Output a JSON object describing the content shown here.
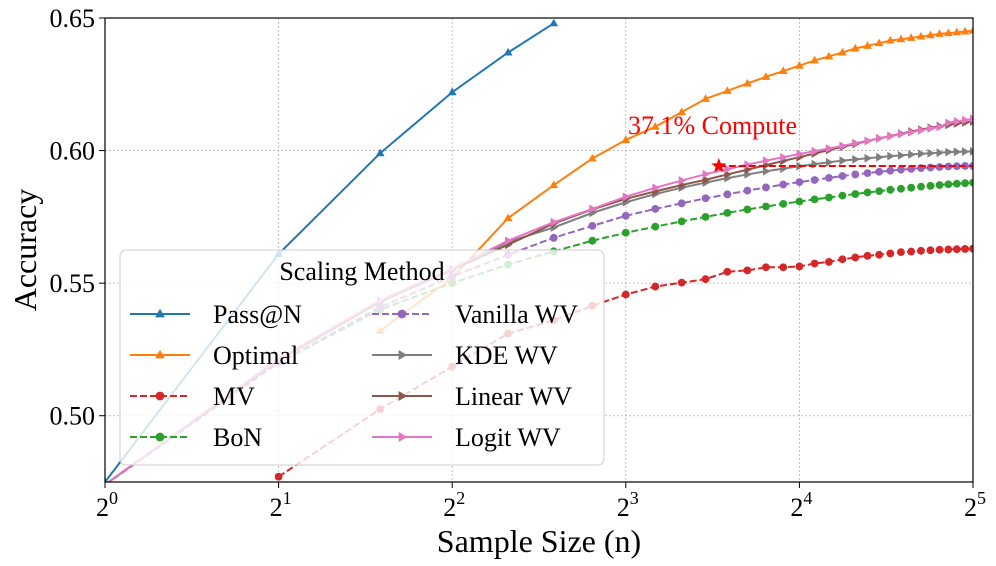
{
  "chart_data": {
    "type": "line",
    "xlabel": "Sample Size (n)",
    "ylabel": "Accuracy",
    "x_scale": "log2",
    "xlim": [
      1,
      32
    ],
    "ylim": [
      0.475,
      0.65
    ],
    "x_ticks": [
      {
        "value": 1,
        "base": "2",
        "exp": "0"
      },
      {
        "value": 2,
        "base": "2",
        "exp": "1"
      },
      {
        "value": 4,
        "base": "2",
        "exp": "2"
      },
      {
        "value": 8,
        "base": "2",
        "exp": "3"
      },
      {
        "value": 16,
        "base": "2",
        "exp": "4"
      },
      {
        "value": 32,
        "base": "2",
        "exp": "5"
      }
    ],
    "y_ticks": [
      {
        "value": 0.5,
        "label": "0.50"
      },
      {
        "value": 0.55,
        "label": "0.55"
      },
      {
        "value": 0.6,
        "label": "0.60"
      },
      {
        "value": 0.65,
        "label": "0.65"
      }
    ],
    "grid": true,
    "legend": {
      "title": "Scaling Method",
      "placement": "lower-left",
      "columns": 2
    },
    "series": [
      {
        "name": "Pass@N",
        "color": "#1f77b4",
        "marker": "triangle-up",
        "dash": "solid",
        "x": [
          1,
          2,
          3,
          4,
          5,
          6
        ],
        "y": [
          0.475,
          0.561,
          0.599,
          0.622,
          0.637,
          0.648
        ]
      },
      {
        "name": "Optimal",
        "color": "#ff7f0e",
        "marker": "triangle-up",
        "dash": "solid",
        "x": [
          3,
          4,
          5,
          6,
          7,
          8,
          9,
          10,
          11,
          12,
          13,
          14,
          15,
          16,
          17,
          18,
          19,
          20,
          21,
          22,
          23,
          24,
          25,
          26,
          27,
          28,
          29,
          30,
          31,
          32
        ],
        "y": [
          0.532,
          0.552,
          0.5745,
          0.587,
          0.597,
          0.604,
          0.609,
          0.6145,
          0.6195,
          0.6225,
          0.6253,
          0.6278,
          0.63,
          0.632,
          0.634,
          0.6355,
          0.637,
          0.6385,
          0.6395,
          0.6405,
          0.6415,
          0.642,
          0.6425,
          0.643,
          0.6435,
          0.644,
          0.6443,
          0.6446,
          0.6449,
          0.6452
        ]
      },
      {
        "name": "MV",
        "color": "#d62728",
        "marker": "circle",
        "dash": "dashed",
        "x": [
          2,
          3,
          4,
          5,
          6,
          7,
          8,
          9,
          10,
          11,
          12,
          13,
          14,
          15,
          16,
          17,
          18,
          19,
          20,
          21,
          22,
          23,
          24,
          25,
          26,
          27,
          28,
          29,
          30,
          31,
          32
        ],
        "y": [
          0.477,
          0.5025,
          0.5185,
          0.531,
          0.536,
          0.5415,
          0.5457,
          0.5487,
          0.5502,
          0.5515,
          0.5543,
          0.5548,
          0.556,
          0.556,
          0.5563,
          0.5574,
          0.558,
          0.559,
          0.5597,
          0.5603,
          0.5607,
          0.5612,
          0.5617,
          0.5619,
          0.5622,
          0.5624,
          0.5626,
          0.5627,
          0.5628,
          0.5629,
          0.563
        ]
      },
      {
        "name": "BoN",
        "color": "#2ca02c",
        "marker": "circle",
        "dash": "dashed",
        "x": [
          1,
          2,
          3,
          4,
          5,
          6,
          7,
          8,
          9,
          10,
          11,
          12,
          13,
          14,
          15,
          16,
          17,
          18,
          19,
          20,
          21,
          22,
          23,
          24,
          25,
          26,
          27,
          28,
          29,
          30,
          31,
          32
        ],
        "y": [
          0.474,
          0.52,
          0.54,
          0.55,
          0.557,
          0.562,
          0.566,
          0.569,
          0.5713,
          0.5733,
          0.575,
          0.5765,
          0.5778,
          0.5789,
          0.5799,
          0.5808,
          0.5816,
          0.5823,
          0.583,
          0.5836,
          0.5842,
          0.5847,
          0.5852,
          0.5856,
          0.586,
          0.5864,
          0.5867,
          0.587,
          0.5873,
          0.5875,
          0.5877,
          0.5879
        ]
      },
      {
        "name": "Vanilla WV",
        "color": "#9467bd",
        "marker": "circle",
        "dash": "dashed",
        "x": [
          1,
          2,
          3,
          4,
          5,
          6,
          7,
          8,
          9,
          10,
          11,
          12,
          13,
          14,
          15,
          16,
          17,
          18,
          19,
          20,
          21,
          22,
          23,
          24,
          25,
          26,
          27,
          28,
          29,
          30,
          31,
          32
        ],
        "y": [
          0.474,
          0.52,
          0.541,
          0.5525,
          0.5607,
          0.5671,
          0.5716,
          0.5754,
          0.578,
          0.5801,
          0.582,
          0.5835,
          0.5849,
          0.5861,
          0.5872,
          0.5881,
          0.5889,
          0.5897,
          0.5904,
          0.591,
          0.5915,
          0.592,
          0.5924,
          0.5928,
          0.5931,
          0.5934,
          0.5936,
          0.5938,
          0.594,
          0.5941,
          0.5942,
          0.5942
        ]
      },
      {
        "name": "KDE WV",
        "color": "#7f7f7f",
        "marker": "triangle-right",
        "dash": "solid",
        "x": [
          1,
          2,
          3,
          4,
          5,
          6,
          7,
          8,
          9,
          10,
          11,
          12,
          13,
          14,
          15,
          16,
          17,
          18,
          19,
          20,
          21,
          22,
          23,
          24,
          25,
          26,
          27,
          28,
          29,
          30,
          31,
          32
        ],
        "y": [
          0.474,
          0.521,
          0.543,
          0.555,
          0.5655,
          0.571,
          0.5765,
          0.5805,
          0.5836,
          0.586,
          0.5879,
          0.5896,
          0.591,
          0.5922,
          0.5932,
          0.5941,
          0.5949,
          0.5956,
          0.5962,
          0.5967,
          0.5971,
          0.5975,
          0.5979,
          0.5982,
          0.5985,
          0.5988,
          0.599,
          0.5992,
          0.5994,
          0.5995,
          0.5996,
          0.5997
        ]
      },
      {
        "name": "Linear WV",
        "color": "#8c564b",
        "marker": "triangle-right",
        "dash": "solid",
        "x": [
          1,
          2,
          3,
          4,
          5,
          6,
          7,
          8,
          9,
          10,
          11,
          12,
          13,
          14,
          15,
          16,
          17,
          18,
          19,
          20,
          21,
          22,
          23,
          24,
          25,
          26,
          27,
          28,
          29,
          30,
          31,
          32
        ],
        "y": [
          0.474,
          0.521,
          0.543,
          0.555,
          0.5645,
          0.5725,
          0.5778,
          0.5818,
          0.5846,
          0.587,
          0.589,
          0.591,
          0.5928,
          0.5945,
          0.5961,
          0.5975,
          0.5989,
          0.6002,
          0.6014,
          0.6025,
          0.6036,
          0.6046,
          0.6055,
          0.6064,
          0.6072,
          0.6079,
          0.6086,
          0.6092,
          0.6097,
          0.6102,
          0.6106,
          0.611
        ]
      },
      {
        "name": "Logit WV",
        "color": "#e377c2",
        "marker": "triangle-right",
        "dash": "solid",
        "x": [
          1,
          2,
          3,
          4,
          5,
          6,
          7,
          8,
          9,
          10,
          11,
          12,
          13,
          14,
          15,
          16,
          17,
          18,
          19,
          20,
          21,
          22,
          23,
          24,
          25,
          26,
          27,
          28,
          29,
          30,
          31,
          32
        ],
        "y": [
          0.474,
          0.5215,
          0.5435,
          0.5555,
          0.566,
          0.573,
          0.578,
          0.5826,
          0.586,
          0.5887,
          0.5911,
          0.593,
          0.5947,
          0.5962,
          0.5975,
          0.5987,
          0.5998,
          0.6008,
          0.6018,
          0.6028,
          0.6037,
          0.6046,
          0.6054,
          0.6062,
          0.6069,
          0.6076,
          0.6083,
          0.6089,
          0.6105,
          0.611,
          0.6115,
          0.612
        ]
      }
    ],
    "annotation": {
      "text": "37.1% Compute",
      "color": "#ff0000",
      "star": {
        "x": 11.6,
        "y": 0.5942
      },
      "hline": {
        "y": 0.5942,
        "from": 11.6,
        "to": 32
      }
    }
  }
}
